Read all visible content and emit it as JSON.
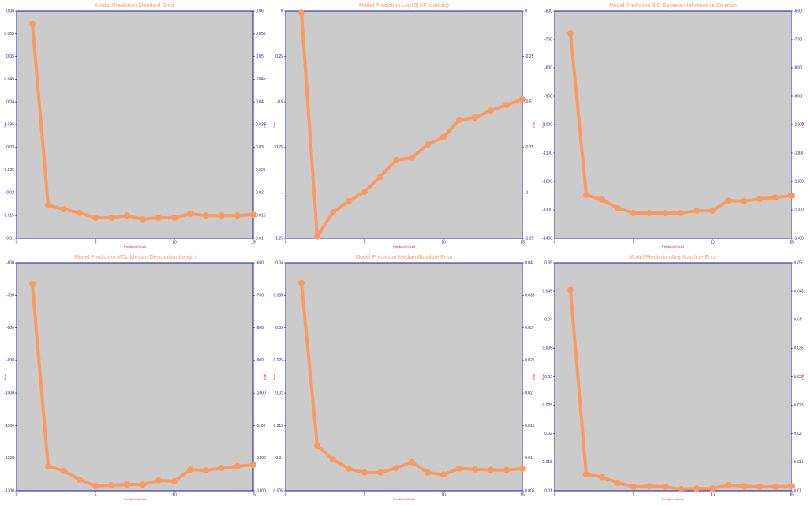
{
  "chart_data": [
    {
      "type": "line",
      "title": "Model Prediction  Standard Error",
      "x_label": "Predictor Count",
      "y_label": "Fval",
      "color": "#fa9a62",
      "x": [
        1,
        2,
        3,
        4,
        5,
        6,
        7,
        8,
        9,
        10,
        11,
        12,
        13,
        14,
        15
      ],
      "values": [
        0.0572,
        0.0173,
        0.0164,
        0.0156,
        0.0145,
        0.0145,
        0.015,
        0.0142,
        0.0145,
        0.0145,
        0.0154,
        0.015,
        0.015,
        0.015,
        0.0152
      ],
      "xlim": [
        0,
        15
      ],
      "xticks": [
        0,
        5,
        10,
        15
      ],
      "ylim": [
        0.01,
        0.06
      ],
      "yticks": [
        0.01,
        0.015,
        0.02,
        0.025,
        0.03,
        0.035,
        0.04,
        0.045,
        0.05,
        0.055,
        0.06
      ]
    },
    {
      "type": "line",
      "title": "Model Prediction  Log10(1/F-statistic)",
      "x_label": "Predictor Count",
      "y_label": "Fval",
      "color": "#fa9a62",
      "x": [
        1,
        2,
        3,
        4,
        5,
        6,
        7,
        8,
        9,
        10,
        11,
        12,
        13,
        14,
        15
      ],
      "values": [
        -0.01,
        -1.24,
        -1.107,
        -1.046,
        -0.994,
        -0.911,
        -0.82,
        -0.807,
        -0.734,
        -0.694,
        -0.599,
        -0.586,
        -0.547,
        -0.516,
        -0.486
      ],
      "xlim": [
        0,
        15
      ],
      "xticks": [
        0,
        5,
        10,
        15
      ],
      "ylim": [
        -1.25,
        0
      ],
      "yticks": [
        -1.25,
        -1,
        -0.75,
        -0.5,
        -0.25,
        0
      ]
    },
    {
      "type": "line",
      "title": "Model Prediction  BIC Bayesian Information Criterion",
      "x_label": "Predictor Count",
      "y_label": "Fval",
      "color": "#fa9a62",
      "x": [
        1,
        2,
        3,
        4,
        5,
        6,
        7,
        8,
        9,
        10,
        11,
        12,
        13,
        14,
        15
      ],
      "values": [
        -678,
        -1247,
        -1264,
        -1294,
        -1311,
        -1311,
        -1311,
        -1311,
        -1303,
        -1303,
        -1267,
        -1269,
        -1261,
        -1256,
        -1250
      ],
      "xlim": [
        0,
        15
      ],
      "xticks": [
        0,
        5,
        10,
        15
      ],
      "ylim": [
        -1400,
        -600
      ],
      "yticks": [
        -1400,
        -1300,
        -1200,
        -1100,
        -1000,
        -900,
        -800,
        -700,
        -600
      ]
    },
    {
      "type": "line",
      "title": "Model Prediction  MDL Median Description Length",
      "x_label": "Predictor Count",
      "y_label": "Fval",
      "color": "#fa9a62",
      "x": [
        1,
        2,
        3,
        4,
        5,
        6,
        7,
        8,
        9,
        10,
        11,
        12,
        13,
        14,
        15
      ],
      "values": [
        -665,
        -1225,
        -1239,
        -1266,
        -1285,
        -1283,
        -1281,
        -1281,
        -1268,
        -1271,
        -1235,
        -1237,
        -1230,
        -1225,
        -1220
      ],
      "xlim": [
        0,
        15
      ],
      "xticks": [
        0,
        5,
        10,
        15
      ],
      "ylim": [
        -1300,
        -600
      ],
      "yticks": [
        -1300,
        -1200,
        -1100,
        -1000,
        -900,
        -800,
        -700,
        -600
      ]
    },
    {
      "type": "line",
      "title": "Model Prediction  Median Absolute Error",
      "x_label": "Predictor Count",
      "y_label": "Fval",
      "color": "#fa9a62",
      "x": [
        1,
        2,
        3,
        4,
        5,
        6,
        7,
        8,
        9,
        10,
        11,
        12,
        13,
        14,
        15
      ],
      "values": [
        0.0369,
        0.0119,
        0.0098,
        0.0084,
        0.0078,
        0.0078,
        0.0085,
        0.0094,
        0.0078,
        0.0075,
        0.0084,
        0.0083,
        0.0082,
        0.0082,
        0.0084
      ],
      "xlim": [
        0,
        15
      ],
      "xticks": [
        0,
        5,
        10,
        15
      ],
      "ylim": [
        0.005,
        0.04
      ],
      "yticks": [
        0.005,
        0.01,
        0.015,
        0.02,
        0.025,
        0.03,
        0.035,
        0.04
      ]
    },
    {
      "type": "line",
      "title": "Model Prediction  Avg Absolute Error",
      "x_label": "Predictor Count",
      "y_label": "Fval",
      "color": "#fa9a62",
      "x": [
        1,
        2,
        3,
        4,
        5,
        6,
        7,
        8,
        9,
        10,
        11,
        12,
        13,
        14,
        15
      ],
      "values": [
        0.0452,
        0.0129,
        0.0124,
        0.0114,
        0.0107,
        0.0108,
        0.0107,
        0.0103,
        0.0104,
        0.0104,
        0.011,
        0.0108,
        0.0107,
        0.0107,
        0.0108
      ],
      "xlim": [
        0,
        15
      ],
      "xticks": [
        0,
        5,
        10,
        15
      ],
      "ylim": [
        0.01,
        0.05
      ],
      "yticks": [
        0.01,
        0.015,
        0.02,
        0.025,
        0.03,
        0.035,
        0.04,
        0.045,
        0.05
      ]
    }
  ]
}
